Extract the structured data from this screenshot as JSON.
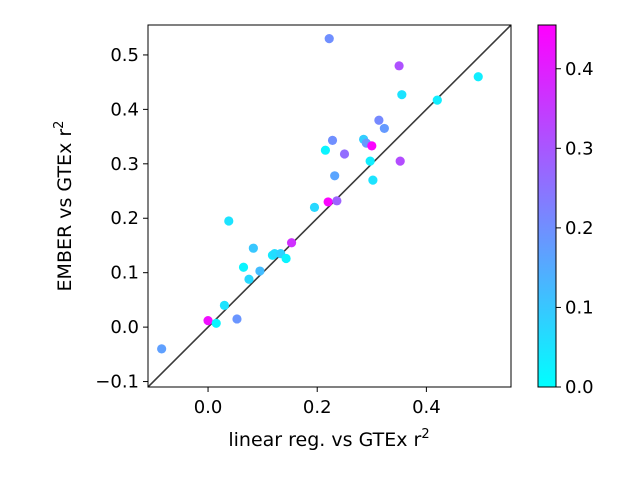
{
  "chart_data": {
    "type": "scatter",
    "title": "",
    "xlabel": "linear reg. vs GTEx r",
    "xlabel_sup": "2",
    "ylabel": "EMBER vs GTEx r",
    "ylabel_sup": "2",
    "xlim": [
      -0.11,
      0.555
    ],
    "ylim": [
      -0.11,
      0.555
    ],
    "xticks": [
      0.0,
      0.2,
      0.4
    ],
    "xtick_labels": [
      "0.0",
      "0.2",
      "0.4"
    ],
    "yticks": [
      -0.1,
      0.0,
      0.1,
      0.2,
      0.3,
      0.4,
      0.5
    ],
    "ytick_labels": [
      "−0.1",
      "0.0",
      "0.1",
      "0.2",
      "0.3",
      "0.4",
      "0.5"
    ],
    "reference_line": "y = x",
    "grid": false,
    "colorbar": {
      "colormap": "cool",
      "min": 0.0,
      "max": 0.455,
      "ticks": [
        0.0,
        0.1,
        0.2,
        0.3,
        0.4
      ],
      "tick_labels": [
        "0.0",
        "0.1",
        "0.2",
        "0.3",
        "0.4"
      ]
    },
    "points": [
      {
        "x": -0.085,
        "y": -0.04,
        "c": 0.17
      },
      {
        "x": 0.0,
        "y": 0.012,
        "c": 0.43
      },
      {
        "x": 0.015,
        "y": 0.007,
        "c": 0.02
      },
      {
        "x": 0.03,
        "y": 0.04,
        "c": 0.05
      },
      {
        "x": 0.038,
        "y": 0.195,
        "c": 0.05
      },
      {
        "x": 0.053,
        "y": 0.015,
        "c": 0.19
      },
      {
        "x": 0.065,
        "y": 0.11,
        "c": 0.02
      },
      {
        "x": 0.075,
        "y": 0.088,
        "c": 0.07
      },
      {
        "x": 0.083,
        "y": 0.145,
        "c": 0.1
      },
      {
        "x": 0.095,
        "y": 0.103,
        "c": 0.12
      },
      {
        "x": 0.118,
        "y": 0.132,
        "c": 0.04
      },
      {
        "x": 0.122,
        "y": 0.135,
        "c": 0.06
      },
      {
        "x": 0.133,
        "y": 0.135,
        "c": 0.08
      },
      {
        "x": 0.143,
        "y": 0.126,
        "c": 0.02
      },
      {
        "x": 0.153,
        "y": 0.155,
        "c": 0.37
      },
      {
        "x": 0.195,
        "y": 0.22,
        "c": 0.07
      },
      {
        "x": 0.215,
        "y": 0.325,
        "c": 0.02
      },
      {
        "x": 0.22,
        "y": 0.23,
        "c": 0.45
      },
      {
        "x": 0.222,
        "y": 0.53,
        "c": 0.2
      },
      {
        "x": 0.228,
        "y": 0.343,
        "c": 0.2
      },
      {
        "x": 0.232,
        "y": 0.278,
        "c": 0.16
      },
      {
        "x": 0.236,
        "y": 0.232,
        "c": 0.28
      },
      {
        "x": 0.25,
        "y": 0.318,
        "c": 0.26
      },
      {
        "x": 0.285,
        "y": 0.345,
        "c": 0.09
      },
      {
        "x": 0.29,
        "y": 0.338,
        "c": 0.18
      },
      {
        "x": 0.297,
        "y": 0.305,
        "c": 0.03
      },
      {
        "x": 0.3,
        "y": 0.333,
        "c": 0.45
      },
      {
        "x": 0.302,
        "y": 0.27,
        "c": 0.05
      },
      {
        "x": 0.313,
        "y": 0.38,
        "c": 0.21
      },
      {
        "x": 0.323,
        "y": 0.365,
        "c": 0.18
      },
      {
        "x": 0.35,
        "y": 0.48,
        "c": 0.31
      },
      {
        "x": 0.352,
        "y": 0.305,
        "c": 0.32
      },
      {
        "x": 0.355,
        "y": 0.427,
        "c": 0.05
      },
      {
        "x": 0.42,
        "y": 0.417,
        "c": 0.03
      },
      {
        "x": 0.495,
        "y": 0.46,
        "c": 0.03
      }
    ]
  }
}
